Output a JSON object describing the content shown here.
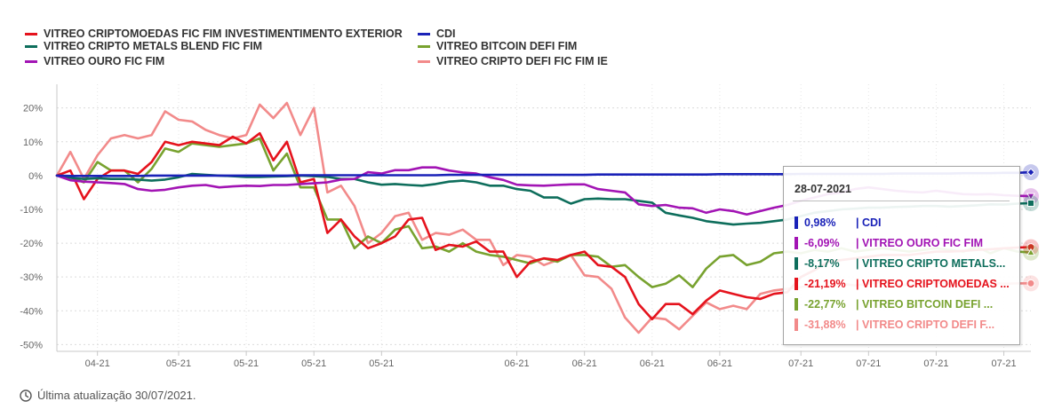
{
  "legend": [
    {
      "name": "VITREO CRIPTOMOEDAS FIC FIM INVESTIMENTIMENTO EXTERIOR",
      "color": "#e5131d"
    },
    {
      "name": "CDI",
      "color": "#1a22b8"
    },
    {
      "name": "VITREO CRIPTO METALS BLEND FIC FIM",
      "color": "#0e6e5c"
    },
    {
      "name": "VITREO BITCOIN DEFI FIM",
      "color": "#78a22f"
    },
    {
      "name": "VITREO OURO FIC FIM",
      "color": "#a214b4"
    },
    {
      "name": "VITREO CRIPTO DEFI FIC FIM IE",
      "color": "#f28a8a"
    }
  ],
  "chart_data": {
    "type": "line",
    "ylim": [
      -52,
      27
    ],
    "yticks": [
      {
        "v": 20,
        "label": "20%"
      },
      {
        "v": 10,
        "label": "10%"
      },
      {
        "v": 0,
        "label": "0%"
      },
      {
        "v": -10,
        "label": "-10%"
      },
      {
        "v": -20,
        "label": "-20%"
      },
      {
        "v": -30,
        "label": "-30%"
      },
      {
        "v": -40,
        "label": "-40%"
      },
      {
        "v": -50,
        "label": "-50%"
      }
    ],
    "n_points": 73,
    "xticks": [
      {
        "i": 3,
        "label": "04-21"
      },
      {
        "i": 9,
        "label": "05-21"
      },
      {
        "i": 14,
        "label": "05-21"
      },
      {
        "i": 19,
        "label": "05-21"
      },
      {
        "i": 24,
        "label": "05-21"
      },
      {
        "i": 34,
        "label": "06-21"
      },
      {
        "i": 39,
        "label": "06-21"
      },
      {
        "i": 44,
        "label": "06-21"
      },
      {
        "i": 49,
        "label": "06-21"
      },
      {
        "i": 55,
        "label": "07-21"
      },
      {
        "i": 60,
        "label": "07-21"
      },
      {
        "i": 65,
        "label": "07-21"
      },
      {
        "i": 70,
        "label": "07-21"
      }
    ],
    "series": [
      {
        "name": "CDI",
        "color": "#1a22b8",
        "values": [
          0,
          -0.1,
          -0.1,
          -0.1,
          -0.1,
          -0.1,
          -0.1,
          0,
          0,
          0,
          0,
          0,
          0,
          0,
          0,
          0,
          0,
          0,
          0.1,
          0.1,
          0.1,
          0.1,
          0.1,
          0.1,
          0.1,
          0.1,
          0.1,
          0.1,
          0.1,
          0.2,
          0.2,
          0.2,
          0.2,
          0.2,
          0.2,
          0.2,
          0.2,
          0.2,
          0.2,
          0.2,
          0.3,
          0.3,
          0.3,
          0.3,
          0.3,
          0.3,
          0.3,
          0.3,
          0.3,
          0.4,
          0.4,
          0.4,
          0.4,
          0.4,
          0.4,
          0.5,
          0.5,
          0.5,
          0.5,
          0.5,
          0.5,
          0.5,
          0.6,
          0.6,
          0.6,
          0.6,
          0.6,
          0.7,
          0.7,
          0.7,
          0.8,
          0.8,
          0.98
        ]
      },
      {
        "name": "VITREO OURO FIC FIM",
        "color": "#a214b4",
        "values": [
          0,
          -1.4,
          -1.8,
          -2,
          -2.2,
          -2.5,
          -4,
          -4.5,
          -4.2,
          -3.5,
          -3,
          -2.8,
          -3.5,
          -3.2,
          -3,
          -3.1,
          -2.8,
          -2.8,
          -2.5,
          -2.3,
          -2,
          -1.2,
          -1,
          1,
          0.6,
          1.6,
          1.6,
          2.4,
          2.4,
          1.5,
          0.9,
          0.6,
          -0.5,
          -1.3,
          -2.7,
          -2.9,
          -3,
          -2.8,
          -2.6,
          -2.6,
          -4,
          -4.5,
          -5,
          -8.5,
          -9,
          -8.7,
          -9.5,
          -9.7,
          -11,
          -10,
          -10.5,
          -11.5,
          -10.5,
          -9.5,
          -8.7,
          -7.5,
          -6.5,
          -5.5,
          -5,
          -4,
          -3.5,
          -4,
          -4.5,
          -4.8,
          -5,
          -4.5,
          -5,
          -5.5,
          -5.6,
          -5.5,
          -5.8,
          -6,
          -6.09
        ]
      },
      {
        "name": "VITREO CRIPTO METALS BLEND FIC FIM",
        "color": "#0e6e5c",
        "values": [
          0,
          -0.7,
          -1,
          -0.8,
          -1,
          -1,
          -1.2,
          -1.5,
          -1.2,
          -0.5,
          0.5,
          0.2,
          0,
          -0.2,
          -0.4,
          -0.4,
          -0.3,
          -0.2,
          0,
          -0.2,
          -0.4,
          -1,
          -1,
          -2,
          -2.7,
          -2.5,
          -2.8,
          -3,
          -2.5,
          -1.8,
          -1.5,
          -2,
          -3,
          -3,
          -4,
          -4.5,
          -6.5,
          -6.5,
          -8.3,
          -7,
          -6.8,
          -7,
          -7,
          -7.5,
          -8,
          -11,
          -11.8,
          -12.5,
          -13.5,
          -14,
          -14.5,
          -14.2,
          -14,
          -13.5,
          -13,
          -12,
          -11,
          -10.5,
          -10,
          -9.8,
          -9.5,
          -9.5,
          -9.3,
          -9.2,
          -9,
          -9,
          -9.2,
          -9,
          -8.8,
          -8.5,
          -8.6,
          -8.3,
          -8.17
        ]
      },
      {
        "name": "VITREO CRIPTOMOEDAS FIC FIM INVESTIMENTIMENTO EXTERIOR",
        "color": "#e5131d",
        "values": [
          0,
          1.5,
          -7,
          -1,
          1.5,
          1.5,
          0.5,
          4,
          10,
          9,
          10,
          9.5,
          9,
          11.5,
          9.5,
          12.5,
          4.5,
          10,
          -2,
          -1,
          -17,
          -13,
          -18,
          -21.5,
          -20,
          -18,
          -13,
          -12.5,
          -22,
          -20.5,
          -21,
          -19.5,
          -22.5,
          -22.5,
          -30,
          -25.5,
          -24.5,
          -25,
          -23.5,
          -22.5,
          -26.5,
          -27,
          -30,
          -38,
          -42.5,
          -38,
          -38,
          -41,
          -37,
          -34,
          -35,
          -36,
          -36.5,
          -35,
          -34.5,
          -30,
          -28,
          -25.5,
          -25,
          -24.5,
          -24,
          -23.5,
          -23.5,
          -23.5,
          -23,
          -22.5,
          -22.5,
          -22.3,
          -22,
          -21.8,
          -21.5,
          -21.3,
          -21.19
        ]
      },
      {
        "name": "VITREO BITCOIN DEFI FIM",
        "color": "#78a22f",
        "values": [
          0,
          -0.5,
          -2,
          4,
          1.5,
          1.5,
          -2,
          2,
          8,
          7,
          9.5,
          9,
          8.5,
          9,
          9.5,
          11,
          1.5,
          6.5,
          -3.5,
          -3.5,
          -13,
          -13,
          -21.5,
          -18,
          -20,
          -16,
          -15,
          -21.5,
          -21,
          -22.5,
          -20,
          -22.5,
          -23.5,
          -24,
          -25,
          -26,
          -24.5,
          -25.5,
          -23.5,
          -23.5,
          -24,
          -27,
          -26.5,
          -30,
          -33,
          -32,
          -29.5,
          -33,
          -27.5,
          -24,
          -23.5,
          -26.5,
          -25.5,
          -23,
          -22.5,
          -23,
          -22,
          -22.5,
          -21.5,
          -22.5,
          -22,
          -21.5,
          -22,
          -22.5,
          -22,
          -21.5,
          -22,
          -22.5,
          -21,
          -23,
          -21.5,
          -22.5,
          -22.77
        ]
      },
      {
        "name": "VITREO CRIPTO DEFI FIC FIM IE",
        "color": "#f28a8a",
        "values": [
          0,
          7,
          -1,
          6,
          11,
          12,
          11,
          12,
          19,
          16.5,
          16,
          13.5,
          12,
          11,
          12,
          21,
          17,
          21.5,
          12,
          20,
          -5,
          -3,
          -9,
          -20,
          -17,
          -12,
          -11,
          -19,
          -17,
          -17.5,
          -16,
          -19,
          -19,
          -26.5,
          -23.5,
          -24,
          -26.5,
          -25,
          -23.5,
          -29.5,
          -30,
          -33.5,
          -42,
          -46.5,
          -42,
          -42.5,
          -45.5,
          -41.5,
          -37.5,
          -39.5,
          -38.5,
          -39.5,
          -35,
          -34,
          -33.5,
          -33,
          -32.5,
          -33,
          -32,
          -32.5,
          -32,
          -31.5,
          -32,
          -32.5,
          -32,
          -31.5,
          -32,
          -32.3,
          -32,
          -31.8,
          -32,
          -31.9,
          -31.88
        ]
      }
    ]
  },
  "tooltip": {
    "date": "28-07-2021",
    "rows": [
      {
        "value": "0,98%",
        "label": "| CDI",
        "color": "#1a22b8"
      },
      {
        "value": "-6,09%",
        "label": "| VITREO OURO FIC FIM",
        "color": "#a214b4"
      },
      {
        "value": "-8,17%",
        "label": "| VITREO CRIPTO METALS...",
        "color": "#0e6e5c"
      },
      {
        "value": "-21,19%",
        "label": "| VITREO CRIPTOMOEDAS ...",
        "color": "#e5131d"
      },
      {
        "value": "-22,77%",
        "label": "| VITREO BITCOIN DEFI ...",
        "color": "#78a22f"
      },
      {
        "value": "-31,88%",
        "label": "| VITREO CRIPTO DEFI F...",
        "color": "#f28a8a"
      }
    ]
  },
  "footer": {
    "text": "Última atualização 30/07/2021."
  }
}
